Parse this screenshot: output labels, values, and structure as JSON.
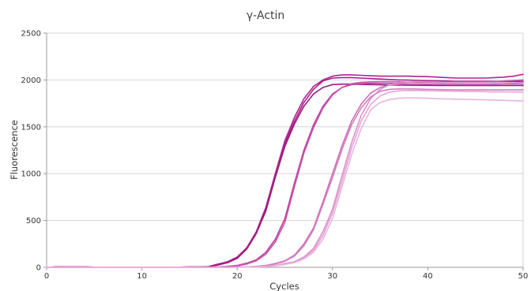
{
  "chart_data": {
    "type": "line",
    "title": "γ-Actin",
    "xlabel": "Cycles",
    "ylabel": "Fluorescence",
    "xlim": [
      0,
      50
    ],
    "ylim": [
      0,
      2500
    ],
    "xticks": [
      0,
      10,
      20,
      30,
      40,
      50
    ],
    "yticks": [
      0,
      500,
      1000,
      1500,
      2000,
      2500
    ],
    "grid": "horizontal",
    "legend": "none",
    "x": [
      0,
      1,
      2,
      3,
      4,
      5,
      6,
      7,
      8,
      9,
      10,
      11,
      12,
      13,
      14,
      15,
      16,
      17,
      18,
      19,
      20,
      21,
      22,
      23,
      24,
      25,
      26,
      27,
      28,
      29,
      30,
      31,
      32,
      33,
      34,
      35,
      36,
      37,
      38,
      39,
      40,
      41,
      42,
      43,
      44,
      45,
      46,
      47,
      48,
      49,
      50
    ],
    "series": [
      {
        "color": "#b0248f",
        "values": [
          0,
          5,
          4,
          3,
          3,
          2,
          2,
          2,
          2,
          2,
          2,
          2,
          2,
          2,
          2,
          3,
          3,
          8,
          35,
          60,
          110,
          210,
          380,
          640,
          1000,
          1350,
          1600,
          1800,
          1930,
          2000,
          2040,
          2055,
          2055,
          2050,
          2045,
          2040,
          2040,
          2040,
          2040,
          2038,
          2035,
          2030,
          2025,
          2020,
          2020,
          2020,
          2020,
          2025,
          2030,
          2040,
          2060
        ]
      },
      {
        "color": "#a8208a",
        "values": [
          0,
          4,
          3,
          3,
          3,
          2,
          2,
          2,
          2,
          2,
          2,
          2,
          2,
          2,
          2,
          3,
          3,
          6,
          30,
          55,
          100,
          200,
          370,
          620,
          980,
          1320,
          1560,
          1760,
          1900,
          1990,
          2020,
          2025,
          2025,
          2020,
          2015,
          2010,
          2005,
          2000,
          1998,
          1995,
          1992,
          1990,
          1988,
          1985,
          1985,
          1985,
          1985,
          1985,
          1985,
          1985,
          1985
        ]
      },
      {
        "color": "#9c1c80",
        "values": [
          0,
          4,
          3,
          3,
          3,
          2,
          2,
          2,
          2,
          2,
          2,
          2,
          2,
          2,
          2,
          3,
          3,
          5,
          25,
          50,
          95,
          195,
          360,
          600,
          960,
          1290,
          1530,
          1720,
          1850,
          1920,
          1950,
          1955,
          1955,
          1952,
          1950,
          1948,
          1946,
          1945,
          1944,
          1943,
          1942,
          1941,
          1940,
          1940,
          1940,
          1940,
          1940,
          1940,
          1940,
          1940,
          1940
        ]
      },
      {
        "color": "#bf40a4",
        "values": [
          0,
          2,
          2,
          2,
          2,
          2,
          2,
          2,
          2,
          2,
          2,
          2,
          2,
          2,
          2,
          2,
          2,
          2,
          5,
          10,
          20,
          45,
          80,
          160,
          300,
          520,
          900,
          1250,
          1520,
          1720,
          1850,
          1920,
          1950,
          1960,
          1965,
          1965,
          1965,
          1963,
          1960,
          1958,
          1955,
          1953,
          1950,
          1950,
          1950,
          1950,
          1950,
          1950,
          1955,
          1965,
          1980
        ]
      },
      {
        "color": "#c456aa",
        "values": [
          0,
          2,
          2,
          2,
          2,
          2,
          2,
          2,
          2,
          2,
          2,
          2,
          2,
          2,
          2,
          2,
          2,
          2,
          4,
          8,
          16,
          35,
          70,
          140,
          270,
          480,
          860,
          1220,
          1490,
          1700,
          1840,
          1920,
          1960,
          1975,
          1980,
          1982,
          1982,
          1980,
          1978,
          1976,
          1974,
          1973,
          1972,
          1972,
          1973,
          1975,
          1978,
          1982,
          1988,
          1994,
          2000
        ]
      },
      {
        "color": "#d070bb",
        "values": [
          0,
          1,
          1,
          1,
          1,
          1,
          1,
          1,
          1,
          1,
          1,
          1,
          1,
          1,
          1,
          1,
          1,
          1,
          1,
          2,
          3,
          5,
          10,
          20,
          40,
          70,
          130,
          250,
          420,
          700,
          1000,
          1300,
          1560,
          1740,
          1860,
          1920,
          1945,
          1955,
          1958,
          1958,
          1957,
          1956,
          1955,
          1955,
          1955,
          1955,
          1955,
          1955,
          1955,
          1955,
          1955
        ]
      },
      {
        "color": "#d57ec1",
        "values": [
          0,
          1,
          1,
          1,
          1,
          1,
          1,
          1,
          1,
          1,
          1,
          1,
          1,
          1,
          1,
          1,
          1,
          1,
          1,
          2,
          3,
          5,
          9,
          18,
          36,
          65,
          120,
          230,
          400,
          670,
          960,
          1260,
          1520,
          1700,
          1820,
          1880,
          1900,
          1905,
          1905,
          1903,
          1900,
          1898,
          1896,
          1895,
          1895,
          1895,
          1895,
          1895,
          1895,
          1895,
          1895
        ]
      },
      {
        "color": "#db8fcb",
        "values": [
          0,
          1,
          1,
          1,
          1,
          1,
          1,
          1,
          1,
          1,
          1,
          1,
          1,
          1,
          1,
          1,
          1,
          1,
          1,
          1,
          2,
          3,
          5,
          10,
          20,
          40,
          60,
          110,
          200,
          380,
          620,
          980,
          1330,
          1620,
          1800,
          1900,
          1950,
          1970,
          1980,
          1982,
          1980,
          1978,
          1976,
          1975,
          1974,
          1973,
          1972,
          1971,
          1970,
          1970,
          1970
        ]
      },
      {
        "color": "#e4a5d7",
        "values": [
          0,
          1,
          1,
          1,
          1,
          1,
          1,
          1,
          1,
          1,
          1,
          1,
          1,
          1,
          1,
          1,
          1,
          1,
          1,
          1,
          2,
          3,
          5,
          9,
          18,
          35,
          55,
          100,
          180,
          340,
          580,
          920,
          1270,
          1560,
          1740,
          1830,
          1870,
          1885,
          1888,
          1887,
          1885,
          1884,
          1882,
          1880,
          1878,
          1876,
          1875,
          1874,
          1873,
          1872,
          1870
        ]
      },
      {
        "color": "#e9b3de",
        "values": [
          0,
          1,
          1,
          1,
          1,
          1,
          1,
          1,
          1,
          1,
          1,
          1,
          1,
          1,
          1,
          1,
          1,
          1,
          1,
          1,
          2,
          3,
          5,
          8,
          16,
          30,
          50,
          90,
          160,
          300,
          520,
          860,
          1200,
          1480,
          1680,
          1760,
          1790,
          1805,
          1810,
          1808,
          1805,
          1800,
          1798,
          1795,
          1792,
          1790,
          1788,
          1785,
          1782,
          1779,
          1775
        ]
      }
    ]
  }
}
